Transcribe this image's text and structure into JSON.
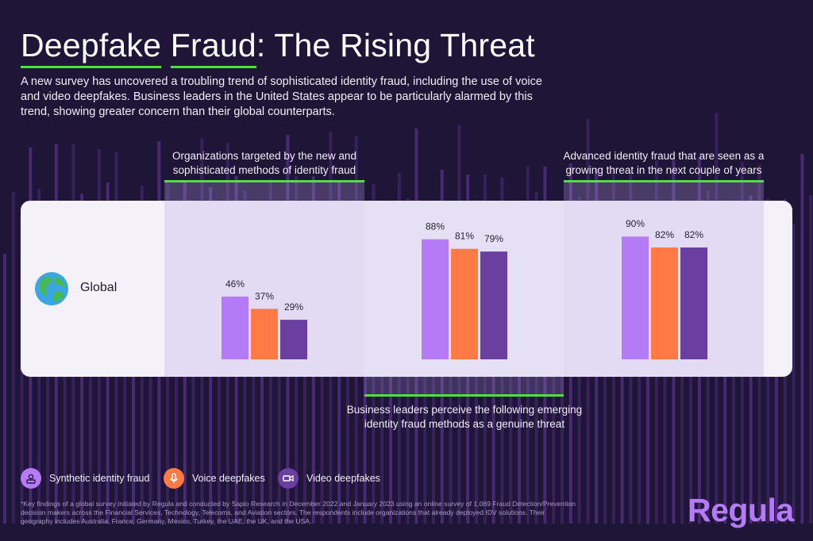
{
  "header": {
    "title_part1": "Deepfake",
    "title_part2": " ",
    "title_part3": "Fraud",
    "title_part4": ": The Rising Threat",
    "subtitle": "A new survey has uncovered a troubling trend of sophisticated identity fraud, including the use of voice and video deepfakes. Business leaders in the United States appear to be particularly alarmed by this trend, showing greater concern than their global counterparts."
  },
  "groups": {
    "g1_label": "Organizations targeted by the new and sophisticated methods of identity fraud",
    "g2_label": "Business leaders perceive the following emerging identity fraud methods as a genuine threat",
    "g3_label": "Advanced identity fraud that are seen as a growing threat in the next couple of years"
  },
  "row_label": "Global",
  "legend": {
    "synthetic": "Synthetic identity fraud",
    "voice": "Voice deepfakes",
    "video": "Video deepfakes"
  },
  "footnote": "*Key findings of a global survey initiated by Regula and conducted by Sapio Research in December 2022 and January 2023 using an online survey of 1,069 Fraud Detection/Prevention decision makers across the Financial Services, Technology, Telecoms, and Aviation sectors. The respondents include organizations that already deployed IDV solutions. Their geography includes Australia, France, Germany, Mexico, Turkey, the UAE, the UK, and the USA.",
  "logo": "Regula",
  "colors": {
    "synthetic": "#b57bf7",
    "voice": "#ff7a45",
    "video": "#6a3fa0",
    "accent_green": "#4fe03f",
    "background": "#1f1536"
  },
  "chart_data": {
    "type": "bar",
    "categories": [
      "Organizations targeted by the new and sophisticated methods of identity fraud",
      "Business leaders perceive the following emerging identity fraud methods as a genuine threat",
      "Advanced identity fraud that are seen as a growing threat in the next couple of years"
    ],
    "series": [
      {
        "name": "Synthetic identity fraud",
        "values": [
          46,
          88,
          90
        ]
      },
      {
        "name": "Voice deepfakes",
        "values": [
          37,
          81,
          82
        ]
      },
      {
        "name": "Video deepfakes",
        "values": [
          29,
          79,
          82
        ]
      }
    ],
    "unit": "%",
    "ylim": [
      0,
      100
    ],
    "grid": false,
    "legend": "bottom-left"
  }
}
